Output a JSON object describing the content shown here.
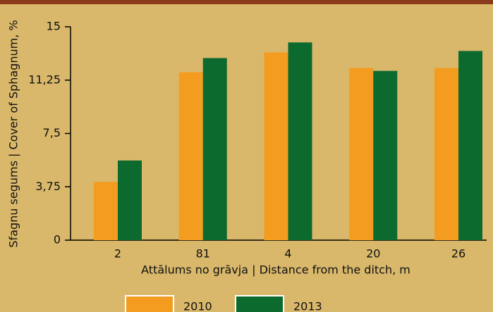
{
  "chart_data": {
    "type": "bar",
    "y_label": "Sfagnu segums | Cover of Sphagnum, %",
    "x_label": "Attālums no grāvja | Distance from the ditch, m",
    "categories": [
      "2",
      "81",
      "4",
      "20",
      "26"
    ],
    "series": [
      {
        "name": "2010",
        "color": "#f39c1f",
        "values": [
          4.1,
          11.8,
          13.2,
          12.1,
          12.1
        ]
      },
      {
        "name": "2013",
        "color": "#0d6a2f",
        "values": [
          5.6,
          12.8,
          13.9,
          11.9,
          13.3
        ]
      }
    ],
    "ylim": [
      0,
      15
    ],
    "yticks": [
      0,
      {
        "value": 3.75,
        "label": "3,75"
      },
      {
        "value": 7.5,
        "label": "7,5"
      },
      {
        "value": 11.25,
        "label": "11,25"
      },
      15
    ]
  }
}
